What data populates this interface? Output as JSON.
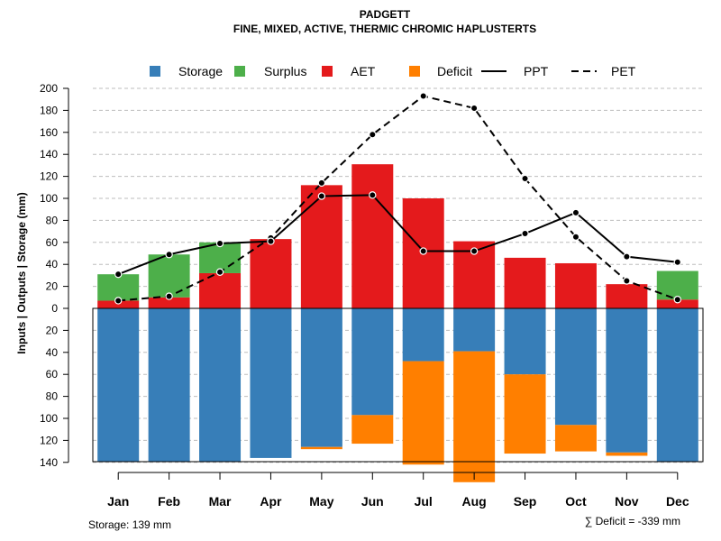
{
  "chart_data": {
    "type": "bar",
    "title": "PADGETT",
    "subtitle": "FINE, MIXED, ACTIVE, THERMIC CHROMIC HAPLUSTERTS",
    "ylabel": "Inputs | Outputs | Storage    (mm)",
    "ylim": [
      -140,
      200
    ],
    "y_ticks": [
      200,
      180,
      160,
      140,
      120,
      100,
      80,
      60,
      40,
      20,
      0,
      -20,
      -40,
      -60,
      -80,
      -100,
      -120,
      -140
    ],
    "y_tick_labels": [
      "200",
      "180",
      "160",
      "140",
      "120",
      "100",
      "80",
      "60",
      "40",
      "20",
      "0",
      "20",
      "40",
      "60",
      "80",
      "100",
      "120",
      "140"
    ],
    "grid": true,
    "categories": [
      "Jan",
      "Feb",
      "Mar",
      "Apr",
      "May",
      "Jun",
      "Jul",
      "Aug",
      "Sep",
      "Oct",
      "Nov",
      "Dec"
    ],
    "legend": [
      {
        "name": "Storage",
        "color": "#377eb8",
        "kind": "box"
      },
      {
        "name": "Surplus",
        "color": "#4daf4a",
        "kind": "box"
      },
      {
        "name": "AET",
        "color": "#e41a1c",
        "kind": "box"
      },
      {
        "name": "Deficit",
        "color": "#ff7f00",
        "kind": "box"
      },
      {
        "name": "PPT",
        "color": "#000000",
        "kind": "solid"
      },
      {
        "name": "PET",
        "color": "#000000",
        "kind": "dashed"
      }
    ],
    "series": [
      {
        "name": "AET",
        "color": "#e41a1c",
        "values": [
          7,
          10,
          32,
          63,
          112,
          131,
          100,
          61,
          46,
          41,
          22,
          8
        ]
      },
      {
        "name": "Surplus",
        "color": "#4daf4a",
        "values": [
          24,
          39,
          28,
          0,
          0,
          0,
          0,
          0,
          0,
          0,
          0,
          26
        ]
      },
      {
        "name": "Storage",
        "color": "#377eb8",
        "values": [
          139,
          139,
          139,
          136,
          126,
          97,
          48,
          39,
          60,
          106,
          131,
          139
        ]
      },
      {
        "name": "Deficit",
        "color": "#ff7f00",
        "values": [
          0,
          0,
          0,
          0,
          2,
          26,
          94,
          119,
          72,
          24,
          3,
          0
        ]
      },
      {
        "name": "PPT",
        "color": "#000000",
        "values": [
          31,
          49,
          59,
          61,
          102,
          103,
          52,
          52,
          68,
          87,
          47,
          42
        ]
      },
      {
        "name": "PET",
        "color": "#000000",
        "values": [
          7,
          11,
          33,
          64,
          114,
          158,
          193,
          182,
          118,
          65,
          25,
          8
        ]
      }
    ],
    "storage_label": "Storage: 139 mm",
    "deficit_label": "∑ Deficit = -339 mm"
  }
}
